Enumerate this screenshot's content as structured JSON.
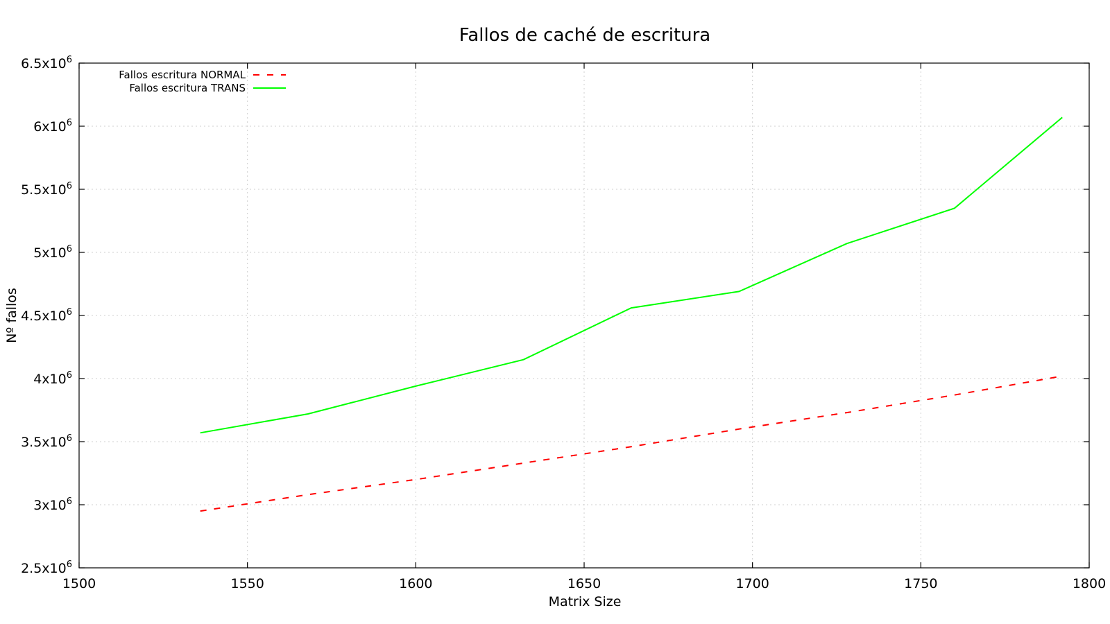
{
  "chart_data": {
    "type": "line",
    "title": "Fallos de caché de escritura",
    "xlabel": "Matrix Size",
    "ylabel": "Nº fallos",
    "xlim": [
      1500,
      1800
    ],
    "ylim": [
      2500000,
      6500000
    ],
    "x_ticks": [
      1500,
      1550,
      1600,
      1650,
      1700,
      1750,
      1800
    ],
    "y_ticks": [
      {
        "value": 2500000,
        "mantissa": "2.5",
        "exp": "6"
      },
      {
        "value": 3000000,
        "mantissa": "3",
        "exp": "6"
      },
      {
        "value": 3500000,
        "mantissa": "3.5",
        "exp": "6"
      },
      {
        "value": 4000000,
        "mantissa": "4",
        "exp": "6"
      },
      {
        "value": 4500000,
        "mantissa": "4.5",
        "exp": "6"
      },
      {
        "value": 5000000,
        "mantissa": "5",
        "exp": "6"
      },
      {
        "value": 5500000,
        "mantissa": "5.5",
        "exp": "6"
      },
      {
        "value": 6000000,
        "mantissa": "6",
        "exp": "6"
      },
      {
        "value": 6500000,
        "mantissa": "6.5",
        "exp": "6"
      }
    ],
    "grid": true,
    "legend_position": "top-left",
    "x": [
      1536,
      1568,
      1600,
      1632,
      1664,
      1696,
      1728,
      1760,
      1792
    ],
    "series": [
      {
        "name": "Fallos escritura NORMAL",
        "color": "#ff0000",
        "style": "dashed",
        "values": [
          2950000,
          3080000,
          3200000,
          3330000,
          3460000,
          3600000,
          3730000,
          3870000,
          4020000
        ]
      },
      {
        "name": "Fallos escritura TRANS",
        "color": "#00ff00",
        "style": "solid",
        "values": [
          3570000,
          3720000,
          3940000,
          4150000,
          4560000,
          4690000,
          5070000,
          5350000,
          6070000
        ]
      }
    ]
  }
}
